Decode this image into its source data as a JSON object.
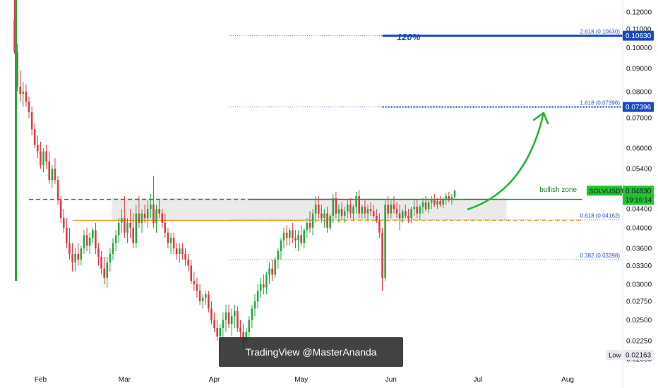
{
  "chart_data": {
    "type": "candlestick",
    "symbol": "SOLVUSDT",
    "last_price": "0.04830",
    "countdown": "19:16:14",
    "y_axis": {
      "scale": "log",
      "ticks": [
        "0.12000",
        "0.11000",
        "0.10000",
        "0.09000",
        "0.08000",
        "0.07000",
        "0.06000",
        "0.05400",
        "0.04400",
        "0.04000",
        "0.03600",
        "0.03300",
        "0.03000",
        "0.02750",
        "0.02500",
        "0.02250",
        "0.02050"
      ],
      "range": [
        0.0197,
        0.1275
      ]
    },
    "x_axis": {
      "ticks": [
        "Feb",
        "Mar",
        "Apr",
        "May",
        "Jun",
        "Jul",
        "Aug"
      ],
      "range": [
        "2024-01-18",
        "2024-08-20"
      ]
    },
    "fib_levels": [
      {
        "label": "2.618 (0.10630)",
        "value": 0.1063,
        "badge": "0.10630",
        "style": "dotted"
      },
      {
        "label": "1.618 (0.07396)",
        "value": 0.07396,
        "badge": "0.07396",
        "style": "dotted"
      },
      {
        "label": "0.618 (0.04162)",
        "value": 0.04162,
        "style": "dotted"
      },
      {
        "label": "0.382 (0.03398)",
        "value": 0.03398,
        "style": "dotted"
      }
    ],
    "horizontal_lines": [
      {
        "value": 0.0462,
        "color": "#1e8e2b",
        "style": "dashed-then-solid"
      },
      {
        "value": 0.0415,
        "color": "#f0a030",
        "style": "solid-then-dashed"
      }
    ],
    "zone": {
      "label": "bullish zone",
      "top": 0.0465,
      "bottom": 0.0415
    },
    "annotations": {
      "percent_label": "120%",
      "low_label": "Low",
      "low_value": "0.02163"
    },
    "arrow": {
      "color": "#21b534"
    },
    "colors": {
      "up": "#22ab3c",
      "down": "#e0383e",
      "fib": "#2a55c0",
      "badge_blue": "#1848c0",
      "symbol_green": "#22c22e",
      "orange": "#f0a030"
    },
    "watermark": "TradingView @MasterAnanda",
    "candles": [
      [
        "2024-01-23",
        0.115,
        0.13,
        0.097,
        0.098
      ],
      [
        "2024-01-24",
        0.098,
        0.102,
        0.08,
        0.082
      ],
      [
        "2024-01-25",
        0.082,
        0.089,
        0.076,
        0.079
      ],
      [
        "2024-01-26",
        0.079,
        0.084,
        0.074,
        0.08
      ],
      [
        "2024-01-27",
        0.08,
        0.083,
        0.074,
        0.076
      ],
      [
        "2024-01-28",
        0.076,
        0.078,
        0.07,
        0.072
      ],
      [
        "2024-01-29",
        0.072,
        0.074,
        0.064,
        0.066
      ],
      [
        "2024-01-30",
        0.066,
        0.068,
        0.06,
        0.061
      ],
      [
        "2024-01-31",
        0.061,
        0.064,
        0.057,
        0.059
      ],
      [
        "2024-02-01",
        0.059,
        0.062,
        0.054,
        0.055
      ],
      [
        "2024-02-02",
        0.055,
        0.06,
        0.053,
        0.059
      ],
      [
        "2024-02-03",
        0.059,
        0.061,
        0.054,
        0.056
      ],
      [
        "2024-02-04",
        0.056,
        0.059,
        0.05,
        0.051
      ],
      [
        "2024-02-05",
        0.051,
        0.055,
        0.049,
        0.054
      ],
      [
        "2024-02-06",
        0.054,
        0.057,
        0.05,
        0.051
      ],
      [
        "2024-02-07",
        0.051,
        0.052,
        0.045,
        0.046
      ],
      [
        "2024-02-08",
        0.046,
        0.047,
        0.041,
        0.042
      ],
      [
        "2024-02-09",
        0.042,
        0.044,
        0.039,
        0.04
      ],
      [
        "2024-02-10",
        0.04,
        0.042,
        0.036,
        0.037
      ],
      [
        "2024-02-11",
        0.037,
        0.04,
        0.034,
        0.035
      ],
      [
        "2024-02-12",
        0.035,
        0.037,
        0.032,
        0.0335
      ],
      [
        "2024-02-13",
        0.0335,
        0.036,
        0.032,
        0.035
      ],
      [
        "2024-02-14",
        0.035,
        0.037,
        0.033,
        0.034
      ],
      [
        "2024-02-15",
        0.034,
        0.0365,
        0.033,
        0.036
      ],
      [
        "2024-02-16",
        0.036,
        0.0395,
        0.035,
        0.0385
      ],
      [
        "2024-02-17",
        0.0385,
        0.04,
        0.0355,
        0.0365
      ],
      [
        "2024-02-18",
        0.0365,
        0.039,
        0.035,
        0.038
      ],
      [
        "2024-02-19",
        0.038,
        0.04,
        0.037,
        0.0395
      ],
      [
        "2024-02-20",
        0.0395,
        0.041,
        0.035,
        0.036
      ],
      [
        "2024-02-21",
        0.036,
        0.037,
        0.033,
        0.0345
      ],
      [
        "2024-02-22",
        0.0345,
        0.0355,
        0.0315,
        0.0325
      ],
      [
        "2024-02-23",
        0.0325,
        0.0345,
        0.03,
        0.031
      ],
      [
        "2024-02-24",
        0.031,
        0.0345,
        0.0295,
        0.0335
      ],
      [
        "2024-02-25",
        0.0335,
        0.036,
        0.032,
        0.035
      ],
      [
        "2024-02-26",
        0.035,
        0.038,
        0.034,
        0.037
      ],
      [
        "2024-02-27",
        0.037,
        0.0395,
        0.0355,
        0.0385
      ],
      [
        "2024-02-28",
        0.0385,
        0.042,
        0.037,
        0.041
      ],
      [
        "2024-02-29",
        0.041,
        0.044,
        0.039,
        0.042
      ],
      [
        "2024-03-01",
        0.042,
        0.047,
        0.038,
        0.039
      ],
      [
        "2024-03-02",
        0.039,
        0.042,
        0.037,
        0.041
      ],
      [
        "2024-03-03",
        0.041,
        0.044,
        0.038,
        0.04
      ],
      [
        "2024-03-04",
        0.04,
        0.043,
        0.036,
        0.037
      ],
      [
        "2024-03-05",
        0.037,
        0.045,
        0.036,
        0.043
      ],
      [
        "2024-03-06",
        0.043,
        0.047,
        0.04,
        0.041
      ],
      [
        "2024-03-07",
        0.041,
        0.044,
        0.039,
        0.043
      ],
      [
        "2024-03-08",
        0.043,
        0.045,
        0.041,
        0.042
      ],
      [
        "2024-03-09",
        0.042,
        0.046,
        0.04,
        0.044
      ],
      [
        "2024-03-10",
        0.044,
        0.0475,
        0.042,
        0.045
      ],
      [
        "2024-03-11",
        0.045,
        0.052,
        0.04,
        0.041
      ],
      [
        "2024-03-12",
        0.041,
        0.045,
        0.039,
        0.044
      ],
      [
        "2024-03-13",
        0.044,
        0.046,
        0.042,
        0.043
      ],
      [
        "2024-03-14",
        0.043,
        0.044,
        0.04,
        0.041
      ],
      [
        "2024-03-15",
        0.041,
        0.043,
        0.038,
        0.039
      ],
      [
        "2024-03-16",
        0.039,
        0.04,
        0.036,
        0.037
      ],
      [
        "2024-03-17",
        0.037,
        0.039,
        0.035,
        0.038
      ],
      [
        "2024-03-18",
        0.038,
        0.039,
        0.035,
        0.036
      ],
      [
        "2024-03-19",
        0.036,
        0.037,
        0.034,
        0.035
      ],
      [
        "2024-03-20",
        0.035,
        0.037,
        0.0335,
        0.036
      ],
      [
        "2024-03-21",
        0.036,
        0.037,
        0.034,
        0.035
      ],
      [
        "2024-03-22",
        0.035,
        0.036,
        0.033,
        0.034
      ],
      [
        "2024-03-23",
        0.034,
        0.035,
        0.032,
        0.033
      ],
      [
        "2024-03-24",
        0.033,
        0.034,
        0.03,
        0.0305
      ],
      [
        "2024-03-25",
        0.0305,
        0.032,
        0.029,
        0.03
      ],
      [
        "2024-03-26",
        0.03,
        0.031,
        0.028,
        0.029
      ],
      [
        "2024-03-27",
        0.029,
        0.03,
        0.027,
        0.0275
      ],
      [
        "2024-03-28",
        0.0275,
        0.0285,
        0.0265,
        0.028
      ],
      [
        "2024-03-29",
        0.028,
        0.029,
        0.027,
        0.0285
      ],
      [
        "2024-03-30",
        0.0285,
        0.029,
        0.026,
        0.0265
      ],
      [
        "2024-03-31",
        0.0265,
        0.0275,
        0.0245,
        0.025
      ],
      [
        "2024-04-01",
        0.025,
        0.026,
        0.0235,
        0.024
      ],
      [
        "2024-04-02",
        0.024,
        0.025,
        0.0225,
        0.023
      ],
      [
        "2024-04-03",
        0.023,
        0.0245,
        0.022,
        0.024
      ],
      [
        "2024-04-04",
        0.024,
        0.026,
        0.0225,
        0.025
      ],
      [
        "2024-04-05",
        0.025,
        0.027,
        0.0235,
        0.026
      ],
      [
        "2024-04-06",
        0.026,
        0.027,
        0.024,
        0.0245
      ],
      [
        "2024-04-07",
        0.0245,
        0.0265,
        0.023,
        0.0255
      ],
      [
        "2024-04-08",
        0.0255,
        0.027,
        0.024,
        0.0262
      ],
      [
        "2024-04-09",
        0.0262,
        0.0268,
        0.0235,
        0.024
      ],
      [
        "2024-04-10",
        0.024,
        0.025,
        0.0228,
        0.0235
      ],
      [
        "2024-04-11",
        0.0235,
        0.0245,
        0.0216,
        0.0225
      ],
      [
        "2024-04-12",
        0.0225,
        0.024,
        0.022,
        0.0235
      ],
      [
        "2024-04-13",
        0.0235,
        0.0255,
        0.0228,
        0.025
      ],
      [
        "2024-04-14",
        0.025,
        0.027,
        0.024,
        0.0265
      ],
      [
        "2024-04-15",
        0.0265,
        0.0285,
        0.0255,
        0.0275
      ],
      [
        "2024-04-16",
        0.0275,
        0.03,
        0.0265,
        0.029
      ],
      [
        "2024-04-17",
        0.029,
        0.031,
        0.028,
        0.03
      ],
      [
        "2024-04-18",
        0.03,
        0.0315,
        0.0285,
        0.0295
      ],
      [
        "2024-04-19",
        0.0295,
        0.032,
        0.0285,
        0.0315
      ],
      [
        "2024-04-20",
        0.0315,
        0.0335,
        0.03,
        0.0325
      ],
      [
        "2024-04-21",
        0.0325,
        0.034,
        0.0305,
        0.0315
      ],
      [
        "2024-04-22",
        0.0315,
        0.0345,
        0.031,
        0.034
      ],
      [
        "2024-04-23",
        0.034,
        0.036,
        0.0325,
        0.0355
      ],
      [
        "2024-04-24",
        0.0355,
        0.038,
        0.034,
        0.0375
      ],
      [
        "2024-04-25",
        0.0375,
        0.04,
        0.036,
        0.039
      ],
      [
        "2024-04-26",
        0.039,
        0.0405,
        0.0365,
        0.038
      ],
      [
        "2024-04-27",
        0.038,
        0.04,
        0.0365,
        0.0395
      ],
      [
        "2024-04-28",
        0.0395,
        0.041,
        0.037,
        0.038
      ],
      [
        "2024-04-29",
        0.038,
        0.0395,
        0.036,
        0.0375
      ],
      [
        "2024-04-30",
        0.0375,
        0.0395,
        0.0355,
        0.0385
      ],
      [
        "2024-05-01",
        0.0385,
        0.0405,
        0.0365,
        0.037
      ],
      [
        "2024-05-02",
        0.037,
        0.04,
        0.036,
        0.0395
      ],
      [
        "2024-05-03",
        0.0395,
        0.042,
        0.038,
        0.041
      ],
      [
        "2024-05-04",
        0.041,
        0.0435,
        0.039,
        0.04
      ],
      [
        "2024-05-05",
        0.04,
        0.044,
        0.0385,
        0.043
      ],
      [
        "2024-05-06",
        0.043,
        0.047,
        0.041,
        0.045
      ],
      [
        "2024-05-07",
        0.045,
        0.047,
        0.042,
        0.043
      ],
      [
        "2024-05-08",
        0.043,
        0.045,
        0.041,
        0.042
      ],
      [
        "2024-05-09",
        0.042,
        0.044,
        0.04,
        0.043
      ],
      [
        "2024-05-10",
        0.043,
        0.0445,
        0.039,
        0.04
      ],
      [
        "2024-05-11",
        0.04,
        0.043,
        0.0395,
        0.0425
      ],
      [
        "2024-05-12",
        0.0425,
        0.0475,
        0.041,
        0.0465
      ],
      [
        "2024-05-13",
        0.0465,
        0.048,
        0.042,
        0.043
      ],
      [
        "2024-05-14",
        0.043,
        0.045,
        0.041,
        0.044
      ],
      [
        "2024-05-15",
        0.044,
        0.0455,
        0.0415,
        0.0425
      ],
      [
        "2024-05-16",
        0.0425,
        0.0445,
        0.041,
        0.0435
      ],
      [
        "2024-05-17",
        0.0435,
        0.046,
        0.042,
        0.045
      ],
      [
        "2024-05-18",
        0.045,
        0.0465,
        0.042,
        0.043
      ],
      [
        "2024-05-19",
        0.043,
        0.045,
        0.0415,
        0.0445
      ],
      [
        "2024-05-20",
        0.0445,
        0.048,
        0.043,
        0.047
      ],
      [
        "2024-05-21",
        0.047,
        0.0485,
        0.042,
        0.043
      ],
      [
        "2024-05-22",
        0.043,
        0.045,
        0.042,
        0.0445
      ],
      [
        "2024-05-23",
        0.0445,
        0.046,
        0.042,
        0.043
      ],
      [
        "2024-05-24",
        0.043,
        0.045,
        0.0415,
        0.044
      ],
      [
        "2024-05-25",
        0.044,
        0.0455,
        0.0425,
        0.0435
      ],
      [
        "2024-05-26",
        0.0435,
        0.045,
        0.042,
        0.0425
      ],
      [
        "2024-05-27",
        0.0425,
        0.044,
        0.041,
        0.0415
      ],
      [
        "2024-05-28",
        0.0415,
        0.043,
        0.038,
        0.039
      ],
      [
        "2024-05-29",
        0.039,
        0.04,
        0.029,
        0.031
      ],
      [
        "2024-05-30",
        0.031,
        0.046,
        0.0305,
        0.045
      ],
      [
        "2024-05-31",
        0.045,
        0.047,
        0.042,
        0.043
      ],
      [
        "2024-06-01",
        0.043,
        0.046,
        0.042,
        0.045
      ],
      [
        "2024-06-02",
        0.045,
        0.047,
        0.043,
        0.044
      ],
      [
        "2024-06-03",
        0.044,
        0.0455,
        0.042,
        0.043
      ],
      [
        "2024-06-04",
        0.043,
        0.045,
        0.0395,
        0.042
      ],
      [
        "2024-06-05",
        0.042,
        0.044,
        0.041,
        0.0435
      ],
      [
        "2024-06-06",
        0.0435,
        0.045,
        0.042,
        0.0425
      ],
      [
        "2024-06-07",
        0.0425,
        0.044,
        0.041,
        0.042
      ],
      [
        "2024-06-08",
        0.042,
        0.0445,
        0.041,
        0.044
      ],
      [
        "2024-06-09",
        0.044,
        0.046,
        0.0425,
        0.0445
      ],
      [
        "2024-06-10",
        0.0445,
        0.046,
        0.042,
        0.043
      ],
      [
        "2024-06-11",
        0.043,
        0.045,
        0.0415,
        0.0445
      ],
      [
        "2024-06-12",
        0.0445,
        0.0465,
        0.043,
        0.0455
      ],
      [
        "2024-06-13",
        0.0455,
        0.047,
        0.0435,
        0.044
      ],
      [
        "2024-06-14",
        0.044,
        0.046,
        0.043,
        0.0455
      ],
      [
        "2024-06-15",
        0.0455,
        0.047,
        0.044,
        0.046
      ],
      [
        "2024-06-16",
        0.046,
        0.0475,
        0.0445,
        0.045
      ],
      [
        "2024-06-17",
        0.045,
        0.0465,
        0.044,
        0.0458
      ],
      [
        "2024-06-18",
        0.0458,
        0.047,
        0.0445,
        0.045
      ],
      [
        "2024-06-19",
        0.045,
        0.0468,
        0.0442,
        0.0462
      ],
      [
        "2024-06-20",
        0.0462,
        0.0478,
        0.045,
        0.047
      ],
      [
        "2024-06-21",
        0.047,
        0.048,
        0.0455,
        0.046
      ],
      [
        "2024-06-22",
        0.046,
        0.0475,
        0.045,
        0.0468
      ],
      [
        "2024-06-23",
        0.0468,
        0.0486,
        0.0462,
        0.0483
      ]
    ]
  }
}
